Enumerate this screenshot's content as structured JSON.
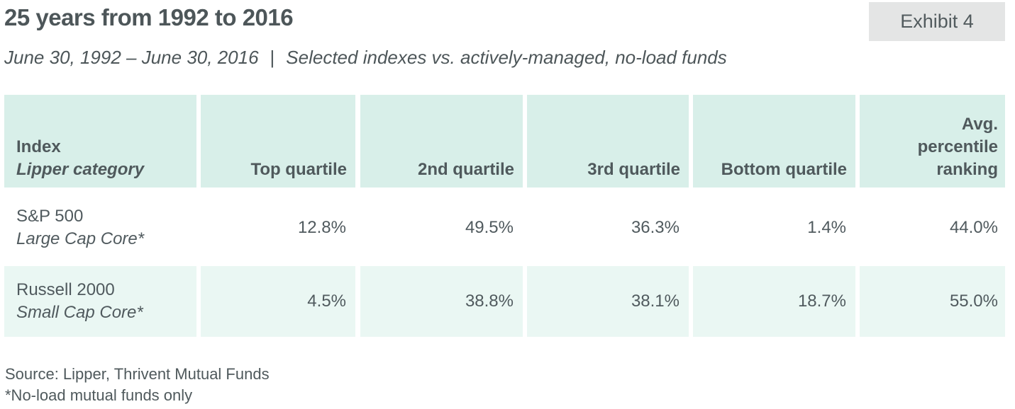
{
  "header": {
    "title": "25 years from 1992 to 2016",
    "exhibit": "Exhibit 4",
    "subtitle_dates": "June 30, 1992 – June 30, 2016",
    "subtitle_sep": "|",
    "subtitle_desc": "Selected indexes vs. actively-managed, no-load funds"
  },
  "table": {
    "columns": {
      "index": "Index",
      "category": "Lipper category",
      "top": "Top quartile",
      "second": "2nd quartile",
      "third": "3rd quartile",
      "bottom": "Bottom quartile",
      "avg_line1": "Avg.",
      "avg_line2": "percentile",
      "avg_line3": "ranking"
    },
    "rows": [
      {
        "index": "S&P 500",
        "category": "Large Cap Core*",
        "top": "12.8%",
        "second": "49.5%",
        "third": "36.3%",
        "bottom": "1.4%",
        "avg": "44.0%"
      },
      {
        "index": "Russell 2000",
        "category": "Small Cap Core*",
        "top": "4.5%",
        "second": "38.8%",
        "third": "38.1%",
        "bottom": "18.7%",
        "avg": "55.0%"
      }
    ]
  },
  "footer": {
    "source": "Source: Lipper, Thrivent Mutual Funds",
    "note": "*No-load mutual funds only"
  },
  "colors": {
    "header_bg": "#d8efe9",
    "row_alt_bg": "#eaf7f3",
    "exhibit_bg": "#e4e5e5",
    "text": "#505a5e"
  }
}
